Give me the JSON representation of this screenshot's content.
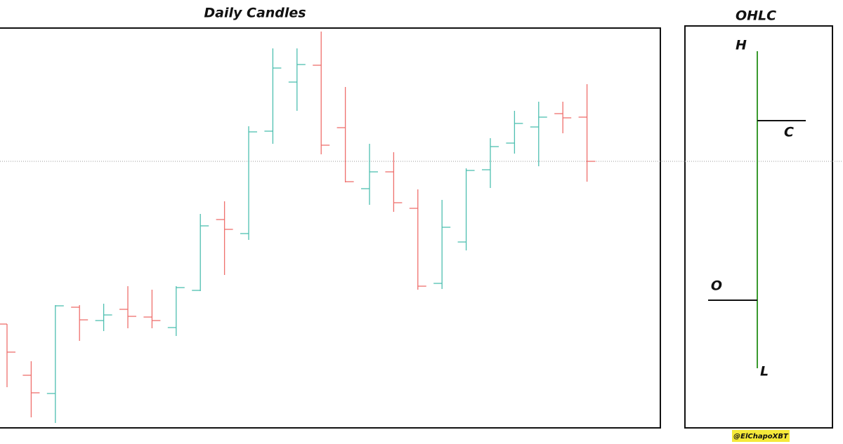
{
  "chart_data": [
    {
      "type": "ohlc",
      "title": "Daily Candles",
      "open": [
        148,
        75,
        49,
        172,
        153,
        169,
        158,
        143,
        196,
        297,
        277,
        423,
        493,
        517,
        428,
        341,
        365,
        313,
        206,
        265,
        368,
        406,
        429,
        448,
        443
      ],
      "high": [
        148,
        95,
        175,
        175,
        177,
        202,
        197,
        202,
        305,
        323,
        430,
        541,
        541,
        565,
        486,
        405,
        393,
        340,
        325,
        370,
        413,
        452,
        465,
        465,
        490
      ],
      "low": [
        58,
        15,
        7,
        124,
        138,
        142,
        142,
        131,
        195,
        218,
        268,
        405,
        452,
        390,
        350,
        318,
        308,
        197,
        198,
        253,
        342,
        391,
        373,
        420,
        351
      ],
      "close": [
        108,
        50,
        174,
        154,
        161,
        159,
        153,
        200,
        288,
        283,
        422,
        513,
        518,
        403,
        351,
        365,
        321,
        202,
        286,
        367,
        401,
        434,
        443,
        442,
        380
      ],
      "up_color": "#4dbfb0",
      "down_color": "#ef6f6c",
      "ylim": [
        0,
        570
      ],
      "last_close_line": true
    },
    {
      "type": "ohlc-legend",
      "title": "OHLC",
      "labels": [
        "H",
        "C",
        "O",
        "L"
      ],
      "color": "#3a9a2e"
    }
  ],
  "watermark": "@ElChapoXBT"
}
